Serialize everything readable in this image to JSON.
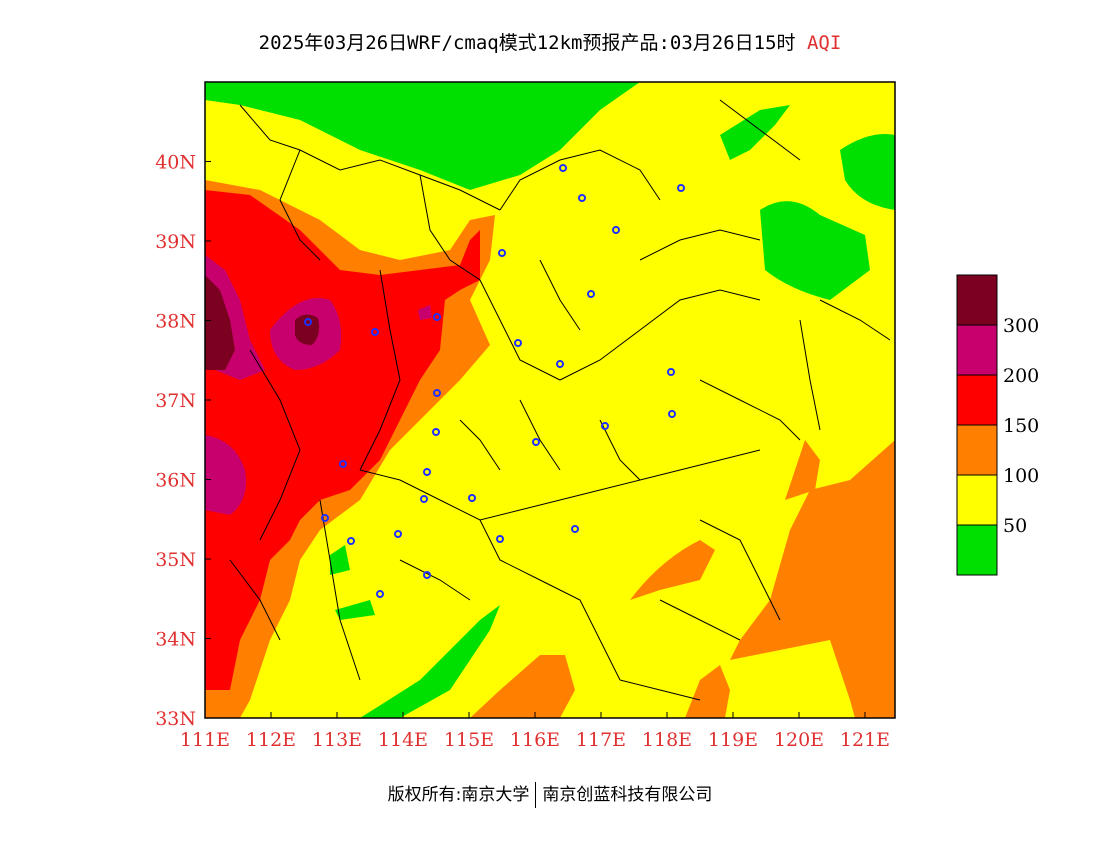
{
  "header": {
    "title": "2025年03月26日WRF/cmaq模式12km预报产品:03月26日15时",
    "title_suffix": "AQI"
  },
  "axes": {
    "lon_labels": [
      "111E",
      "112E",
      "113E",
      "114E",
      "115E",
      "116E",
      "117E",
      "118E",
      "119E",
      "120E",
      "121E"
    ],
    "lat_labels": [
      "33N",
      "34N",
      "35N",
      "36N",
      "37N",
      "38N",
      "39N",
      "40N"
    ],
    "label_color": "#e03030"
  },
  "legend": {
    "levels": [
      {
        "label": "",
        "color": "#00e000"
      },
      {
        "label": "50",
        "color": "#ffff00"
      },
      {
        "label": "100",
        "color": "#ff8000"
      },
      {
        "label": "150",
        "color": "#ff0000"
      },
      {
        "label": "200",
        "color": "#c8006e"
      },
      {
        "label": "300",
        "color": "#7c0020"
      }
    ]
  },
  "footer": {
    "left": "版权所有:南京大学",
    "right": "南京创蓝科技有限公司"
  }
}
